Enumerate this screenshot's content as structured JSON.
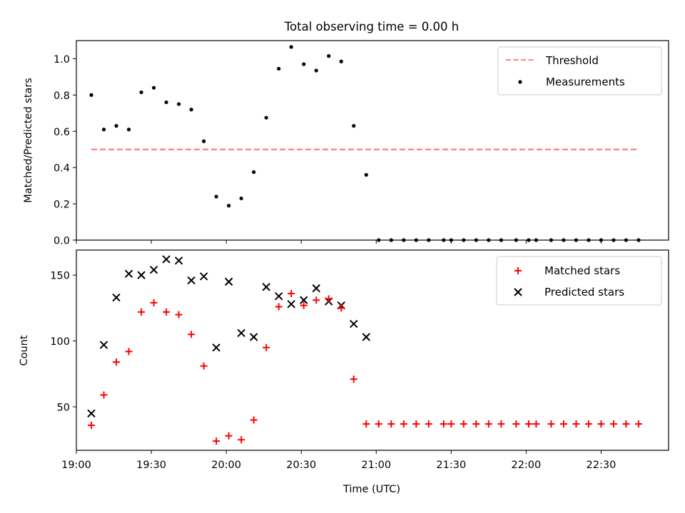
{
  "figure": {
    "title": "Total observing time = 0.00 h"
  },
  "chart_data": [
    {
      "type": "scatter",
      "ylabel": "Matched/Predicted stars",
      "xlabel": "",
      "xlim": [
        "19:00",
        "22:57"
      ],
      "ylim": [
        0,
        1.1
      ],
      "y_ticks": [
        0.0,
        0.2,
        0.4,
        0.6,
        0.8,
        1.0
      ],
      "y_tick_labels": [
        "0.0",
        "0.2",
        "0.4",
        "0.6",
        "0.8",
        "1.0"
      ],
      "x_tick_labels": [],
      "legend": {
        "position": "top-right"
      },
      "colors": {
        "threshold": "#ff7070",
        "measurements": "#000000"
      },
      "threshold": {
        "name": "Threshold",
        "value": 0.5,
        "x_start": "19:06",
        "x_end": "22:45"
      },
      "series": [
        {
          "name": "Measurements",
          "x": [
            "19:06",
            "19:11",
            "19:16",
            "19:21",
            "19:26",
            "19:31",
            "19:36",
            "19:41",
            "19:46",
            "19:51",
            "19:56",
            "20:01",
            "20:06",
            "20:11",
            "20:16",
            "20:21",
            "20:26",
            "20:31",
            "20:36",
            "20:41",
            "20:46",
            "20:51",
            "20:56",
            "21:01",
            "21:06",
            "21:11",
            "21:16",
            "21:21",
            "21:27",
            "21:30",
            "21:35",
            "21:40",
            "21:45",
            "21:50",
            "21:56",
            "22:01",
            "22:04",
            "22:10",
            "22:15",
            "22:20",
            "22:25",
            "22:30",
            "22:35",
            "22:40",
            "22:45"
          ],
          "y": [
            0.8,
            0.61,
            0.63,
            0.61,
            0.815,
            0.84,
            0.76,
            0.75,
            0.72,
            0.545,
            0.24,
            0.19,
            0.23,
            0.375,
            0.675,
            0.945,
            1.065,
            0.97,
            0.935,
            1.015,
            0.985,
            0.63,
            0.36,
            0,
            0,
            0,
            0,
            0,
            0,
            0,
            0,
            0,
            0,
            0,
            0,
            0,
            0,
            0,
            0,
            0,
            0,
            0,
            0,
            0,
            0
          ]
        }
      ]
    },
    {
      "type": "scatter",
      "ylabel": "Count",
      "xlabel": "Time (UTC)",
      "xlim": [
        "19:00",
        "22:57"
      ],
      "ylim": [
        17,
        169
      ],
      "y_ticks": [
        50,
        100,
        150
      ],
      "y_tick_labels": [
        "50",
        "100",
        "150"
      ],
      "x_ticks": [
        "19:00",
        "19:30",
        "20:00",
        "20:30",
        "21:00",
        "21:30",
        "22:00",
        "22:30"
      ],
      "x_tick_labels": [
        "19:00",
        "19:30",
        "20:00",
        "20:30",
        "21:00",
        "21:30",
        "22:00",
        "22:30"
      ],
      "legend": {
        "position": "top-right"
      },
      "colors": {
        "matched": "#ff0000",
        "predicted": "#000000"
      },
      "series": [
        {
          "name": "Matched stars",
          "marker": "plus",
          "x": [
            "19:06",
            "19:11",
            "19:16",
            "19:21",
            "19:26",
            "19:31",
            "19:36",
            "19:41",
            "19:46",
            "19:51",
            "19:56",
            "20:01",
            "20:06",
            "20:11",
            "20:16",
            "20:21",
            "20:26",
            "20:31",
            "20:36",
            "20:41",
            "20:46",
            "20:51",
            "20:56",
            "21:01",
            "21:06",
            "21:11",
            "21:16",
            "21:21",
            "21:27",
            "21:30",
            "21:35",
            "21:40",
            "21:45",
            "21:50",
            "21:56",
            "22:01",
            "22:04",
            "22:10",
            "22:15",
            "22:20",
            "22:25",
            "22:30",
            "22:35",
            "22:40",
            "22:45"
          ],
          "y": [
            36,
            59,
            84,
            92,
            122,
            129,
            122,
            120,
            105,
            81,
            24,
            28,
            25,
            40,
            95,
            126,
            136,
            127,
            131,
            132,
            125,
            71,
            37,
            37,
            37,
            37,
            37,
            37,
            37,
            37,
            37,
            37,
            37,
            37,
            37,
            37,
            37,
            37,
            37,
            37,
            37,
            37,
            37,
            37,
            37
          ]
        },
        {
          "name": "Predicted stars",
          "marker": "x",
          "x": [
            "19:06",
            "19:11",
            "19:16",
            "19:21",
            "19:26",
            "19:31",
            "19:36",
            "19:41",
            "19:46",
            "19:51",
            "19:56",
            "20:01",
            "20:06",
            "20:11",
            "20:16",
            "20:21",
            "20:26",
            "20:31",
            "20:36",
            "20:41",
            "20:46",
            "20:51",
            "20:56"
          ],
          "y": [
            45,
            97,
            133,
            151,
            150,
            154,
            162,
            161,
            146,
            149,
            95,
            145,
            106,
            103,
            141,
            134,
            128,
            131,
            140,
            130,
            127,
            113,
            103
          ]
        }
      ]
    }
  ]
}
